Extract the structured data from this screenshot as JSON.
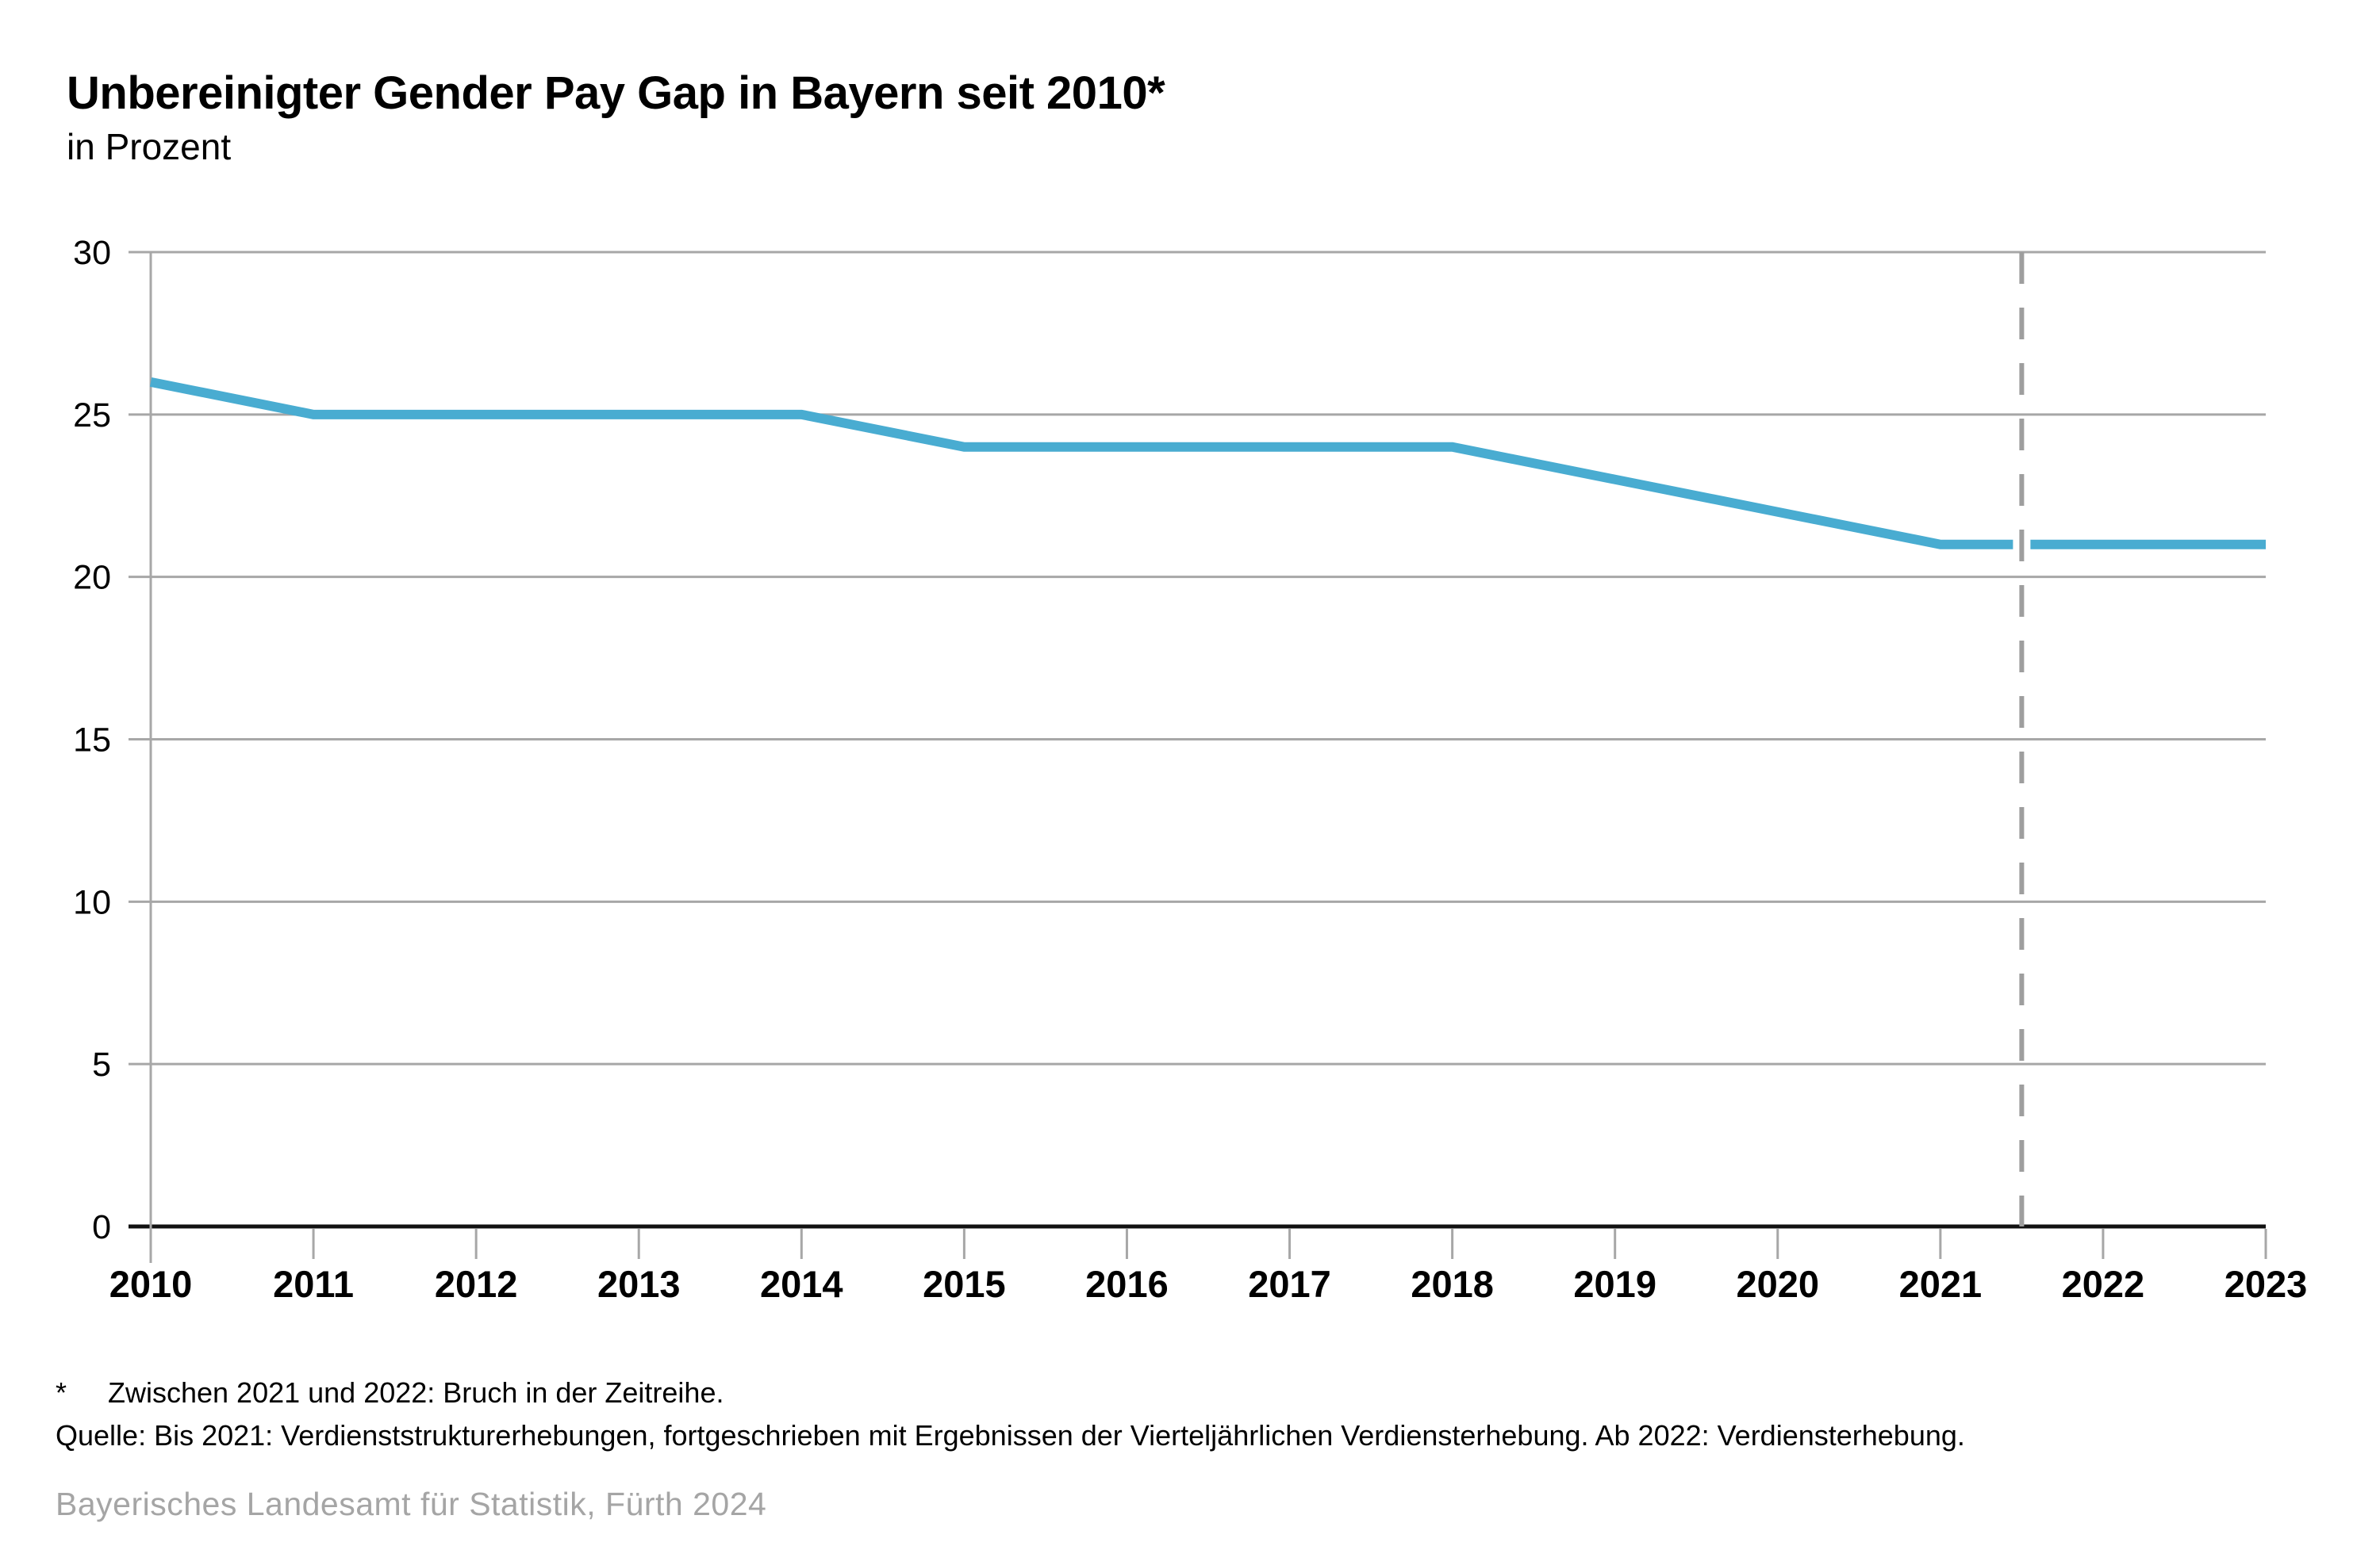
{
  "header": {
    "title": "Unbereinigter Gender Pay Gap in Bayern seit 2010*",
    "subtitle": "in Prozent"
  },
  "chart_data": {
    "type": "line",
    "title": "Unbereinigter Gender Pay Gap in Bayern seit 2010*",
    "subtitle": "in Prozent",
    "categories": [
      "2010",
      "2011",
      "2012",
      "2013",
      "2014",
      "2015",
      "2016",
      "2017",
      "2018",
      "2019",
      "2020",
      "2021",
      "2022",
      "2023"
    ],
    "series": [
      {
        "name": "Unbereinigter Gender Pay Gap",
        "values": [
          26,
          25,
          25,
          25,
          25,
          24,
          24,
          24,
          24,
          23,
          22,
          21,
          21,
          21
        ]
      }
    ],
    "xlabel": "",
    "ylabel": "Prozent",
    "ylim": [
      0,
      30
    ],
    "ytick_step": 5,
    "grid": true,
    "legend": "none",
    "break_line": {
      "between": [
        "2021",
        "2022"
      ],
      "style": "dashed",
      "meaning": "Bruch in der Zeitreihe"
    },
    "colors": {
      "line": "#49ACD1",
      "grid": "#A7A7A7",
      "axis": "#111111",
      "break_line": "#9E9E9E",
      "tick": "#A7A7A7"
    }
  },
  "footnotes": {
    "asterisk": "*",
    "note": "Zwischen 2021 und 2022: Bruch in der Zeitreihe.",
    "source": "Quelle: Bis 2021: Verdienststrukturerhebungen, fortgeschrieben mit Ergebnissen der Vierteljährlichen Verdiensterhebung. Ab 2022: Verdiensterhebung."
  },
  "footer": {
    "publisher": "Bayerisches Landesamt für Statistik, Fürth 2024",
    "text_color": "#A5A5A5"
  }
}
